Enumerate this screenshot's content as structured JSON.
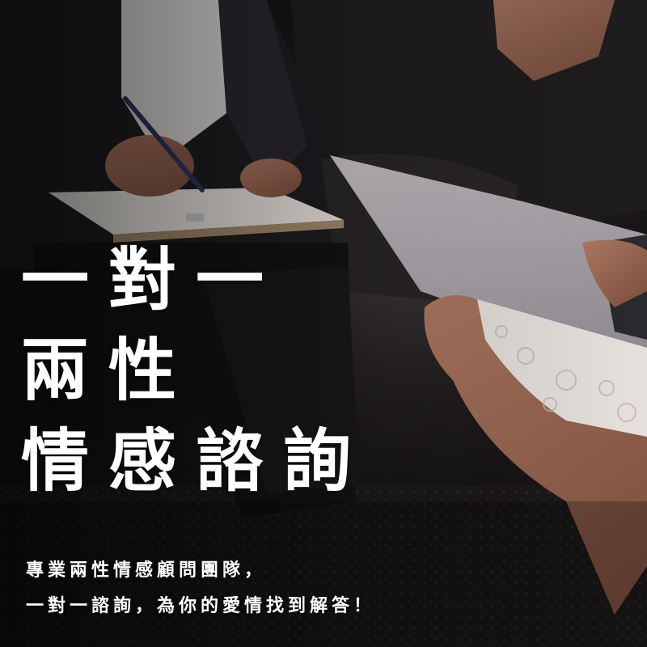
{
  "headline": {
    "line1": "一對一",
    "line2": "兩性",
    "line3": "情感諮詢"
  },
  "subtitle": {
    "line1": "專業兩性情感顧問團隊，",
    "line2": "一對一諮詢，為你的愛情找到解答！"
  },
  "colors": {
    "text": "#ffffff",
    "background": "#141112"
  }
}
